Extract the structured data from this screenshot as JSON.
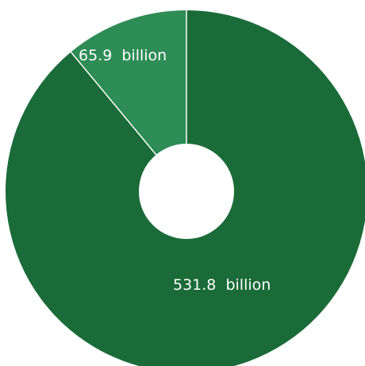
{
  "chart_data": {
    "type": "pie",
    "title": "",
    "slices": [
      {
        "label": "531.8  billion",
        "value": 531.8,
        "color": "#1a6b38"
      },
      {
        "label": "65.9  billion",
        "value": 65.9,
        "color": "#2e8c55"
      }
    ]
  },
  "colors": {
    "background": "#ffffff",
    "separator": "#ffffff",
    "label_text": "#ffffff"
  }
}
